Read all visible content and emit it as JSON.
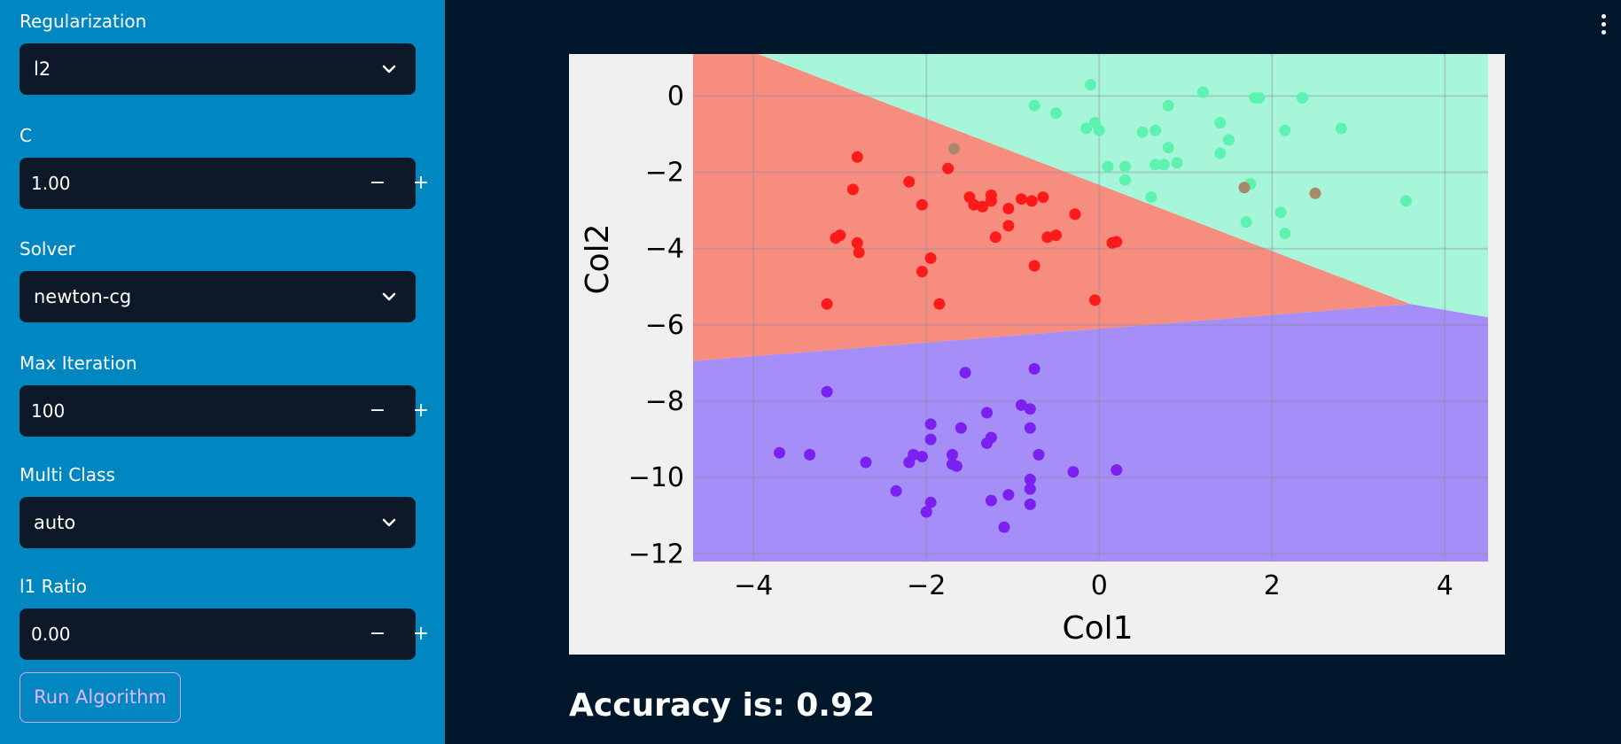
{
  "sidebar": {
    "regularization": {
      "label": "Regularization",
      "value": "l2"
    },
    "c": {
      "label": "C",
      "value": "1.00",
      "minus": "−",
      "plus": "+"
    },
    "solver": {
      "label": "Solver",
      "value": "newton-cg"
    },
    "max_iteration": {
      "label": "Max Iteration",
      "value": "100",
      "minus": "−",
      "plus": "+"
    },
    "multi_class": {
      "label": "Multi Class",
      "value": "auto"
    },
    "l1_ratio": {
      "label": "l1 Ratio",
      "value": "0.00",
      "minus": "−",
      "plus": "+"
    },
    "run_button": "Run Algorithm"
  },
  "result": {
    "accuracy_text": "Accuracy is: 0.92"
  },
  "colors": {
    "sidebar_bg": "#0086c0",
    "main_bg": "#00172b",
    "region_red": "#f78d7f",
    "region_green": "#a8f6da",
    "region_purple": "#a58ef7",
    "point_red": "#ff1a1a",
    "point_green": "#5cf2b0",
    "point_purple": "#7b20f0"
  },
  "chart_data": {
    "type": "scatter",
    "xlabel": "Col1",
    "ylabel": "Col2",
    "xlim": [
      -4.7,
      4.5
    ],
    "ylim": [
      -12.2,
      1.1
    ],
    "xticks": [
      -4,
      -2,
      0,
      2,
      4
    ],
    "yticks": [
      0,
      -2,
      -4,
      -6,
      -8,
      -10,
      -12
    ],
    "grid": true,
    "regions": [
      {
        "class": "red",
        "color": "#f78d7f",
        "polygon": [
          [
            -4.7,
            1.1
          ],
          [
            -3.95,
            1.1
          ],
          [
            3.6,
            -5.45
          ],
          [
            -4.7,
            -6.95
          ]
        ]
      },
      {
        "class": "green",
        "color": "#a8f6da",
        "polygon": [
          [
            -3.95,
            1.1
          ],
          [
            4.5,
            1.1
          ],
          [
            4.5,
            -5.8
          ],
          [
            3.6,
            -5.45
          ]
        ]
      },
      {
        "class": "purple",
        "color": "#a58ef7",
        "polygon": [
          [
            -4.7,
            -6.95
          ],
          [
            3.6,
            -5.45
          ],
          [
            4.5,
            -5.8
          ],
          [
            4.5,
            -12.2
          ],
          [
            -4.7,
            -12.2
          ]
        ]
      }
    ],
    "series": [
      {
        "color": "#ff1a1a",
        "points": [
          [
            -2.8,
            -1.6
          ],
          [
            -2.85,
            -2.45
          ],
          [
            -2.2,
            -2.25
          ],
          [
            -1.75,
            -1.9
          ],
          [
            -2.05,
            -2.85
          ],
          [
            -3.0,
            -3.65
          ],
          [
            -3.05,
            -3.72
          ],
          [
            -2.8,
            -3.85
          ],
          [
            -2.78,
            -4.1
          ],
          [
            -1.5,
            -2.65
          ],
          [
            -1.45,
            -2.85
          ],
          [
            -1.35,
            -2.9
          ],
          [
            -1.25,
            -2.6
          ],
          [
            -1.25,
            -2.75
          ],
          [
            -1.05,
            -2.95
          ],
          [
            -0.9,
            -2.7
          ],
          [
            -0.78,
            -2.75
          ],
          [
            -0.65,
            -2.65
          ],
          [
            -0.28,
            -3.1
          ],
          [
            -1.05,
            -3.4
          ],
          [
            -1.2,
            -3.7
          ],
          [
            -0.6,
            -3.7
          ],
          [
            -0.5,
            -3.65
          ],
          [
            0.15,
            -3.85
          ],
          [
            0.2,
            -3.82
          ],
          [
            -1.95,
            -4.25
          ],
          [
            -2.05,
            -4.6
          ],
          [
            -0.75,
            -4.45
          ],
          [
            -3.15,
            -5.45
          ],
          [
            -1.85,
            -5.45
          ],
          [
            -0.05,
            -5.35
          ]
        ]
      },
      {
        "color": "#5cf2b0",
        "points": [
          [
            -0.75,
            -0.25
          ],
          [
            -0.5,
            -0.45
          ],
          [
            -0.1,
            0.3
          ],
          [
            -0.05,
            -0.7
          ],
          [
            -0.15,
            -0.85
          ],
          [
            0.0,
            -0.9
          ],
          [
            0.1,
            -1.85
          ],
          [
            0.3,
            -1.85
          ],
          [
            0.3,
            -2.2
          ],
          [
            0.5,
            -0.95
          ],
          [
            0.65,
            -0.9
          ],
          [
            0.65,
            -1.8
          ],
          [
            0.75,
            -1.8
          ],
          [
            0.8,
            -1.35
          ],
          [
            0.9,
            -1.75
          ],
          [
            0.8,
            -0.25
          ],
          [
            1.2,
            0.1
          ],
          [
            1.4,
            -0.7
          ],
          [
            1.5,
            -1.15
          ],
          [
            1.4,
            -1.5
          ],
          [
            1.8,
            -0.05
          ],
          [
            1.85,
            -0.05
          ],
          [
            2.35,
            -0.05
          ],
          [
            2.15,
            -0.9
          ],
          [
            2.8,
            -0.85
          ],
          [
            0.6,
            -2.65
          ],
          [
            1.75,
            -2.3
          ],
          [
            1.7,
            -3.3
          ],
          [
            2.1,
            -3.05
          ],
          [
            2.15,
            -3.6
          ],
          [
            3.55,
            -2.75
          ]
        ]
      },
      {
        "color": "#a88a6a",
        "points": [
          [
            -1.68,
            -1.38
          ],
          [
            1.68,
            -2.4
          ],
          [
            2.5,
            -2.55
          ]
        ]
      },
      {
        "color": "#7b20f0",
        "points": [
          [
            -3.15,
            -7.75
          ],
          [
            -1.55,
            -7.25
          ],
          [
            -0.75,
            -7.15
          ],
          [
            -0.9,
            -8.1
          ],
          [
            -0.8,
            -8.2
          ],
          [
            -1.3,
            -8.3
          ],
          [
            -1.95,
            -8.6
          ],
          [
            -1.6,
            -8.7
          ],
          [
            -0.8,
            -8.7
          ],
          [
            -1.25,
            -8.95
          ],
          [
            -1.3,
            -9.1
          ],
          [
            -1.95,
            -9.0
          ],
          [
            -2.15,
            -9.4
          ],
          [
            -2.05,
            -9.45
          ],
          [
            -2.2,
            -9.6
          ],
          [
            -1.7,
            -9.4
          ],
          [
            -1.7,
            -9.65
          ],
          [
            -1.65,
            -9.7
          ],
          [
            -0.7,
            -9.4
          ],
          [
            -3.7,
            -9.35
          ],
          [
            -3.35,
            -9.4
          ],
          [
            -2.7,
            -9.6
          ],
          [
            -0.3,
            -9.85
          ],
          [
            0.2,
            -9.8
          ],
          [
            -0.8,
            -10.05
          ],
          [
            -0.8,
            -10.3
          ],
          [
            -2.35,
            -10.35
          ],
          [
            -1.95,
            -10.65
          ],
          [
            -1.25,
            -10.6
          ],
          [
            -0.8,
            -10.7
          ],
          [
            -1.05,
            -10.45
          ],
          [
            -2.0,
            -10.9
          ],
          [
            -1.1,
            -11.3
          ]
        ]
      }
    ]
  }
}
